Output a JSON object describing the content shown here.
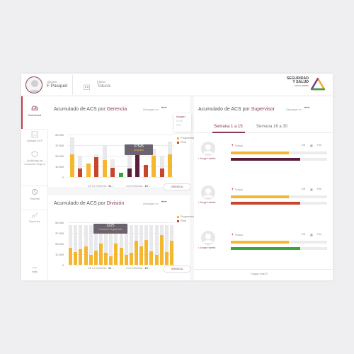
{
  "header": {
    "user_label": "Usuario",
    "user_name": "F Pasquel",
    "plant_label": "Planta",
    "plant_name": "Toluca",
    "logo_line1": "SEGURIDAD",
    "logo_line2": "Y SALUD",
    "logo_line3": "GRUPO BIMBO"
  },
  "sidebar": {
    "items": [
      {
        "label": "Dashboard",
        "icon": "dashboard-icon"
      },
      {
        "label": "Agregar ACS",
        "icon": "add-acs-icon"
      },
      {
        "label": "Auditorías de Conducta Segura",
        "icon": "audit-shield-icon"
      },
      {
        "label": "Historial",
        "icon": "history-icon"
      },
      {
        "label": "Reportes",
        "icon": "reports-icon"
      }
    ],
    "more_label": "Más"
  },
  "gerencia": {
    "title_prefix": "Acumulado de ACS  por ",
    "title_bold": "Gerencia",
    "download_label": "Descargar en",
    "menu": [
      "Imagen",
      "Excel",
      "PDF"
    ],
    "legend": [
      "Programadas",
      "Real"
    ],
    "tooltip_value": "37525",
    "tooltip_label": "Acapulco",
    "from_label": "DE LA SEMANA",
    "from_value": "01",
    "to_label": "A LA SEMANA",
    "to_value": "15",
    "button": "GRÁFICA"
  },
  "division": {
    "title_prefix": "Acumulado de ACS  por ",
    "title_bold": "División",
    "download_label": "Descargar en",
    "legend": [
      "Programadas",
      "Real"
    ],
    "tooltip_value": "3225",
    "tooltip_label": "Comercio Organizado",
    "from_label": "DE LA SEMANA",
    "from_value": "01",
    "to_label": "A LA SEMANA",
    "to_value": "15",
    "button": "GRÁFICA"
  },
  "supervisor": {
    "title_prefix": "Acumulado de ACS  por ",
    "title_bold": "Supervisor",
    "download_label": "Descargar en",
    "tabs": [
      "Semana 1 a 15",
      "Semana 16 a 30"
    ],
    "cards": [
      {
        "location": "Toluca",
        "count": "2/5",
        "unit": "Hrs",
        "name": "Jorge Huerta",
        "top": 0.6,
        "bottom": 0.72,
        "top_color": "#f3b731",
        "bottom_color": "#5a1e3c"
      },
      {
        "location": "Toluca",
        "count": "2/5",
        "unit": "Hrs",
        "name": "Jorge Huerta",
        "top": 0.6,
        "bottom": 0.72,
        "top_color": "#f3b731",
        "bottom_color": "#c8442a"
      },
      {
        "location": "Toluca",
        "count": "2/5",
        "unit": "Hrs",
        "name": "Jorge Huerta",
        "top": 0.6,
        "bottom": 0.72,
        "top_color": "#f3b731",
        "bottom_color": "#3aa63a"
      }
    ],
    "load_more": "Cargar más"
  },
  "colors": {
    "accent": "#8a3a52",
    "programmed": "#f3b731",
    "real": "#c8442a"
  },
  "chart_data": [
    {
      "type": "bar",
      "title": "Acumulado de ACS por Gerencia",
      "ylim": [
        0,
        50000
      ],
      "yticks": [
        "50.000",
        "37.500",
        "25.000",
        "12.500",
        "0"
      ],
      "series": [
        {
          "name": "Programadas",
          "values": [
            47000,
            25000,
            10000,
            27000,
            37500,
            21000,
            5000,
            33000,
            20000,
            14000,
            33000,
            24000,
            42000
          ]
        },
        {
          "name": "Real",
          "values": [
            27000,
            10000,
            16000,
            23000,
            20000,
            11000,
            5000,
            10000,
            37500,
            14000,
            25000,
            10000,
            27000
          ]
        }
      ],
      "highlight": {
        "series": 1,
        "index": 6,
        "color": "#3aa63a"
      },
      "legend_position": "top-right",
      "grid": true
    },
    {
      "type": "bar",
      "title": "Acumulado de ACS por División",
      "ylim": [
        0,
        50000
      ],
      "yticks": [
        "50.000",
        "37.500",
        "25.000",
        "12.500",
        "0"
      ],
      "series": [
        {
          "name": "Programadas",
          "values": [
            47000,
            47000,
            47000,
            47000,
            47000,
            47000,
            47000,
            47000,
            47000,
            47000,
            47000,
            47000,
            47000,
            47000,
            47000,
            47000,
            47000,
            47000,
            47000,
            47000,
            47000
          ]
        },
        {
          "name": "Real",
          "values": [
            15000,
            12000,
            20000,
            10000,
            15000,
            10000,
            20000,
            12000,
            28000,
            15000,
            22000,
            18000,
            28000,
            10000,
            30000,
            22000,
            34000,
            27000,
            13000,
            28000,
            20000
          ]
        }
      ],
      "programmed_overlay": [
        20000,
        15000,
        18000,
        22000,
        12000,
        17000,
        25000,
        14000,
        10000,
        25000,
        20000,
        12000,
        14000,
        28000,
        22000,
        29000,
        16000,
        12000,
        35000,
        15000,
        28000
      ],
      "legend_position": "top-right",
      "grid": true
    }
  ]
}
